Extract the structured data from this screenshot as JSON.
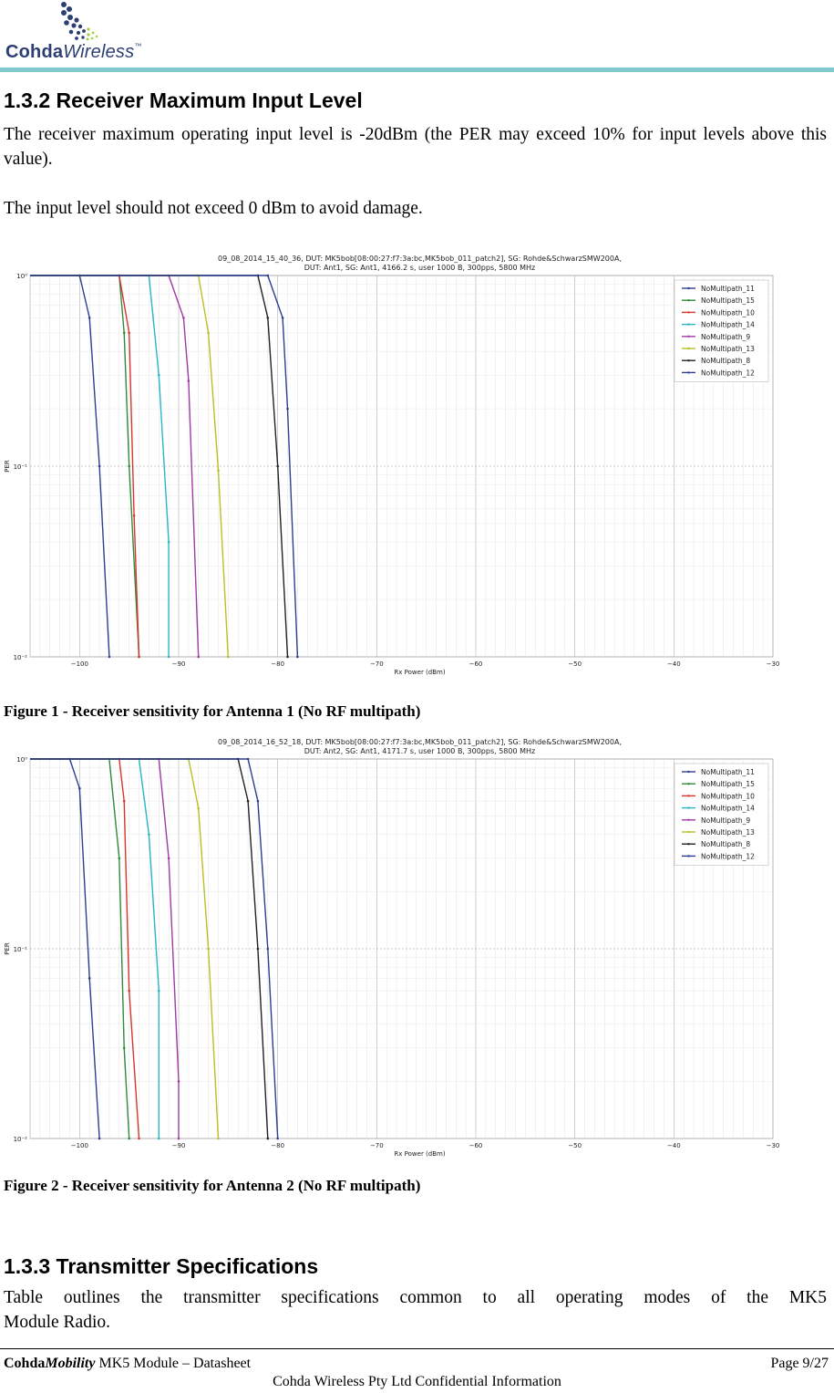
{
  "header": {
    "logo_brand_bold": "Cohda",
    "logo_brand_italic": "Wireless",
    "logo_tm": "™"
  },
  "section_1_3_2": {
    "heading": "1.3.2  Receiver Maximum Input Level",
    "paragraph_1": "The receiver maximum operating input level is -20dBm (the PER may exceed 10% for input levels above this value).",
    "paragraph_2": "The input level should not exceed 0 dBm to avoid damage."
  },
  "figures": [
    {
      "caption": "Figure 1 - Receiver sensitivity for Antenna 1 (No RF multipath)"
    },
    {
      "caption": "Figure 2 - Receiver sensitivity for Antenna 2 (No RF multipath)"
    }
  ],
  "section_1_3_3": {
    "heading": "1.3.3  Transmitter Specifications",
    "paragraph_line_1": "Table  outlines the transmitter specifications common to all operating modes of the MK5",
    "paragraph_line_2": "Module Radio."
  },
  "footer": {
    "doc_brand_bold": "Cohda",
    "doc_brand_italic": "Mobility",
    "doc_title": " MK5 Module – Datasheet",
    "page": "Page 9/27",
    "confidential": "Cohda Wireless Pty Ltd Confidential Information"
  },
  "chart_data": [
    {
      "type": "line",
      "title": "09_08_2014_15_40_36, DUT: MK5bob[08:00:27:f7:3a:bc,MK5bob_011_patch2], SG: Rohde&SchwarzSMW200A,",
      "subtitle": "DUT: Ant1, SG: Ant1, 4166.2 s, user 1000 B, 300pps, 5800 MHz",
      "xlabel": "Rx Power (dBm)",
      "ylabel": "PER",
      "y_scale": "log",
      "xlim": [
        -105,
        -30
      ],
      "ylim": [
        0.01,
        1
      ],
      "x_ticks": [
        "−100",
        "−90",
        "−80",
        "−70",
        "−60",
        "−50",
        "−40",
        "−30"
      ],
      "y_ticks": [
        "10⁰",
        "10⁻¹",
        "10⁻²"
      ],
      "grid": true,
      "legend_position": "top-right",
      "series": [
        {
          "name": "NoMultipath_11",
          "color": "#2c3e91",
          "points": [
            [
              -105,
              1
            ],
            [
              -100,
              1
            ],
            [
              -99,
              0.6
            ],
            [
              -98,
              0.1
            ],
            [
              -97,
              0.01
            ]
          ]
        },
        {
          "name": "NoMultipath_15",
          "color": "#2e8b3a",
          "points": [
            [
              -105,
              1
            ],
            [
              -96,
              1
            ],
            [
              -95.5,
              0.5
            ],
            [
              -95,
              0.1
            ],
            [
              -94,
              0.01
            ]
          ]
        },
        {
          "name": "NoMultipath_10",
          "color": "#d9342b",
          "points": [
            [
              -105,
              1
            ],
            [
              -96,
              1
            ],
            [
              -95,
              0.5
            ],
            [
              -94.5,
              0.055
            ],
            [
              -94,
              0.01
            ]
          ]
        },
        {
          "name": "NoMultipath_14",
          "color": "#25b7c4",
          "points": [
            [
              -105,
              1
            ],
            [
              -93,
              1
            ],
            [
              -92,
              0.3
            ],
            [
              -91,
              0.04
            ],
            [
              -91,
              0.01
            ]
          ]
        },
        {
          "name": "NoMultipath_9",
          "color": "#a03aa6",
          "points": [
            [
              -105,
              1
            ],
            [
              -91,
              1
            ],
            [
              -89.5,
              0.6
            ],
            [
              -89,
              0.28
            ],
            [
              -88,
              0.01
            ]
          ]
        },
        {
          "name": "NoMultipath_13",
          "color": "#b9c022",
          "points": [
            [
              -105,
              1
            ],
            [
              -88,
              1
            ],
            [
              -87,
              0.5
            ],
            [
              -86,
              0.095
            ],
            [
              -85,
              0.01
            ]
          ]
        },
        {
          "name": "NoMultipath_8",
          "color": "#222222",
          "points": [
            [
              -105,
              1
            ],
            [
              -82,
              1
            ],
            [
              -81,
              0.6
            ],
            [
              -80,
              0.1
            ],
            [
              -79,
              0.01
            ]
          ]
        },
        {
          "name": "NoMultipath_12",
          "color": "#2c3e91",
          "points": [
            [
              -105,
              1
            ],
            [
              -81,
              1
            ],
            [
              -79.5,
              0.6
            ],
            [
              -79,
              0.2
            ],
            [
              -78,
              0.01
            ]
          ]
        }
      ]
    },
    {
      "type": "line",
      "title": "09_08_2014_16_52_18, DUT: MK5bob[08:00:27:f7:3a:bc,MK5bob_011_patch2], SG: Rohde&SchwarzSMW200A,",
      "subtitle": "DUT: Ant2, SG: Ant1, 4171.7 s, user 1000 B, 300pps, 5800 MHz",
      "xlabel": "Rx Power (dBm)",
      "ylabel": "PER",
      "y_scale": "log",
      "xlim": [
        -105,
        -30
      ],
      "ylim": [
        0.01,
        1
      ],
      "x_ticks": [
        "−100",
        "−90",
        "−80",
        "−70",
        "−60",
        "−50",
        "−40",
        "−30"
      ],
      "y_ticks": [
        "10⁰",
        "10⁻¹",
        "10⁻²"
      ],
      "grid": true,
      "legend_position": "top-right",
      "series": [
        {
          "name": "NoMultipath_11",
          "color": "#2c3e91",
          "points": [
            [
              -105,
              1
            ],
            [
              -101,
              1
            ],
            [
              -100,
              0.7
            ],
            [
              -99,
              0.07
            ],
            [
              -98,
              0.01
            ]
          ]
        },
        {
          "name": "NoMultipath_15",
          "color": "#2e8b3a",
          "points": [
            [
              -105,
              1
            ],
            [
              -97,
              1
            ],
            [
              -96,
              0.3
            ],
            [
              -95.5,
              0.03
            ],
            [
              -95,
              0.01
            ]
          ]
        },
        {
          "name": "NoMultipath_10",
          "color": "#d9342b",
          "points": [
            [
              -105,
              1
            ],
            [
              -96,
              1
            ],
            [
              -95.5,
              0.6
            ],
            [
              -95,
              0.06
            ],
            [
              -94,
              0.01
            ]
          ]
        },
        {
          "name": "NoMultipath_14",
          "color": "#25b7c4",
          "points": [
            [
              -105,
              1
            ],
            [
              -94,
              1
            ],
            [
              -93,
              0.4
            ],
            [
              -92,
              0.06
            ],
            [
              -92,
              0.01
            ]
          ]
        },
        {
          "name": "NoMultipath_9",
          "color": "#a03aa6",
          "points": [
            [
              -105,
              1
            ],
            [
              -92,
              1
            ],
            [
              -91,
              0.3
            ],
            [
              -90,
              0.02
            ],
            [
              -90,
              0.01
            ]
          ]
        },
        {
          "name": "NoMultipath_13",
          "color": "#b9c022",
          "points": [
            [
              -105,
              1
            ],
            [
              -89,
              1
            ],
            [
              -88,
              0.55
            ],
            [
              -87,
              0.1
            ],
            [
              -86,
              0.01
            ]
          ]
        },
        {
          "name": "NoMultipath_8",
          "color": "#222222",
          "points": [
            [
              -105,
              1
            ],
            [
              -84,
              1
            ],
            [
              -83,
              0.6
            ],
            [
              -82,
              0.1
            ],
            [
              -81,
              0.01
            ]
          ]
        },
        {
          "name": "NoMultipath_12",
          "color": "#2c3e91",
          "points": [
            [
              -105,
              1
            ],
            [
              -83,
              1
            ],
            [
              -82,
              0.6
            ],
            [
              -81,
              0.1
            ],
            [
              -80,
              0.01
            ]
          ]
        }
      ]
    }
  ]
}
